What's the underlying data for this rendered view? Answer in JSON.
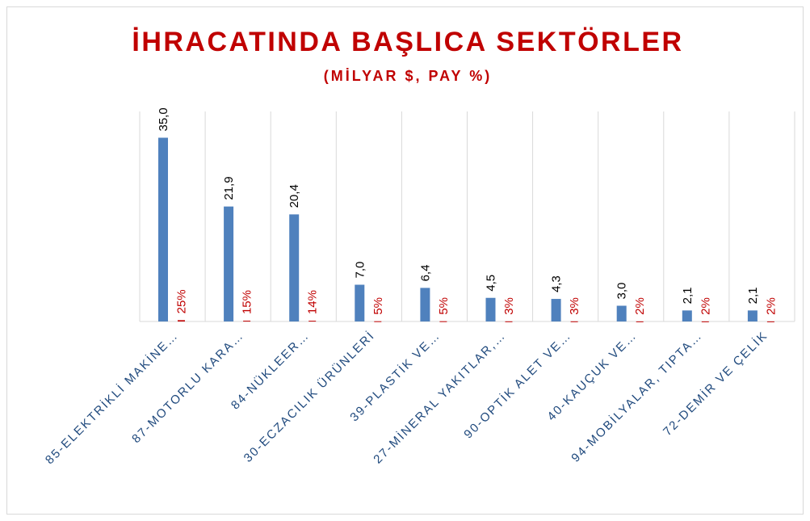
{
  "chart_data": {
    "type": "bar",
    "title": "İHRACATINDA BAŞLICA SEKTÖRLER",
    "subtitle": "(MİLYAR $, PAY %)",
    "categories": [
      "85-ELEKTRİKLİ MAKİNE…",
      "87-MOTORLU KARA…",
      "84-NÜKLEER…",
      "30-ECZACILIK ÜRÜNLERİ",
      "39-PLASTİK VE…",
      "27-MİNERAL YAKITLAR,…",
      "90-OPTİK ALET VE…",
      "40-KAUÇUK VE…",
      "94-MOBİLYALAR, TIPTA…",
      "72-DEMİR VE ÇELİK"
    ],
    "series": [
      {
        "color": "#4f81bd",
        "values": [
          35.0,
          21.9,
          20.4,
          7.0,
          6.4,
          4.5,
          4.3,
          3.0,
          2.1,
          2.1
        ],
        "value_labels": [
          "35,0",
          "21,9",
          "20,4",
          "7,0",
          "6,4",
          "4,5",
          "4,3",
          "3,0",
          "2,1",
          "2,1"
        ]
      },
      {
        "color": "#c00000",
        "values": [
          0.25,
          0.15,
          0.14,
          0.05,
          0.05,
          0.03,
          0.03,
          0.02,
          0.02,
          0.02
        ],
        "value_labels": [
          "25%",
          "15%",
          "14%",
          "5%",
          "5%",
          "3%",
          "3%",
          "2%",
          "2%",
          "2%"
        ]
      }
    ],
    "ylim": [
      0,
      40
    ]
  }
}
